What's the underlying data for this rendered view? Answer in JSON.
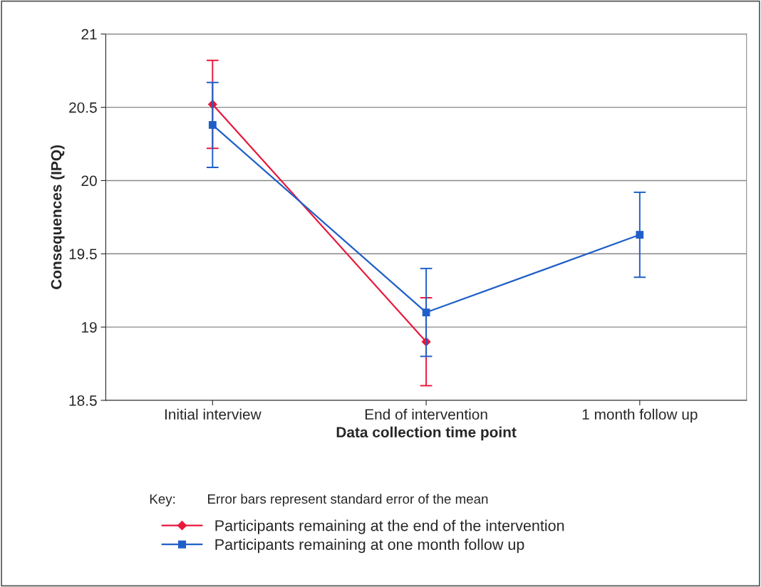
{
  "chart_data": {
    "type": "line",
    "xlabel": "Data collection time point",
    "ylabel": "Consequences (IPQ)",
    "categories": [
      "Initial interview",
      "End of intervention",
      "1 month follow up"
    ],
    "series": [
      {
        "name": "Participants remaining at the end of the intervention",
        "color": "#e8183c",
        "marker": "diamond",
        "values": [
          20.52,
          18.9,
          null
        ],
        "errors": [
          0.3,
          0.3,
          null
        ]
      },
      {
        "name": "Participants remaining at one month follow up",
        "color": "#1f5fc8",
        "marker": "square",
        "values": [
          20.38,
          19.1,
          19.63
        ],
        "errors": [
          0.29,
          0.3,
          0.29
        ]
      }
    ],
    "ylim": [
      18.5,
      21
    ],
    "yticks": [
      18.5,
      19,
      19.5,
      20,
      20.5,
      21
    ],
    "grid": "y",
    "legend": "bottom",
    "annotations": [
      "Key:",
      "Error bars represent standard error of the mean"
    ]
  }
}
